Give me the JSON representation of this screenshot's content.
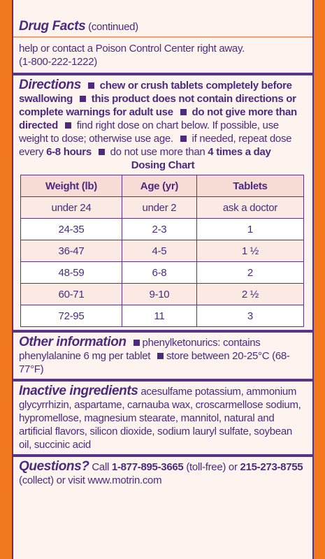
{
  "header": {
    "title": "Drug Facts",
    "subtitle": "(continued)"
  },
  "warning_continued": {
    "text": "help or contact a Poison Control Center right away.",
    "phone": "(1-800-222-1222)"
  },
  "directions": {
    "heading": "Directions",
    "items": [
      [
        {
          "text": "chew or crush tablets completely before swallowing",
          "bold": true
        }
      ],
      [
        {
          "text": "this product does not contain directions or complete warnings for adult use",
          "bold": true
        }
      ],
      [
        {
          "text": "do not give more than directed",
          "bold": true
        }
      ],
      [
        {
          "text": "find right dose on chart below. If possible, use weight to dose; otherwise use age.",
          "bold": false
        }
      ],
      [
        {
          "text": "if needed, repeat dose every",
          "bold": false
        },
        {
          "text": "6-8 hours",
          "bold": true
        }
      ],
      [
        {
          "text": "do not use more than",
          "bold": false
        },
        {
          "text": "4 times a day",
          "bold": true
        }
      ]
    ],
    "chart": {
      "title": "Dosing Chart",
      "columns": [
        "Weight (lb)",
        "Age (yr)",
        "Tablets"
      ],
      "rows": [
        [
          "under 24",
          "under 2",
          "ask a doctor"
        ],
        [
          "24-35",
          "2-3",
          "1"
        ],
        [
          "36-47",
          "4-5",
          "1 ½"
        ],
        [
          "48-59",
          "6-8",
          "2"
        ],
        [
          "60-71",
          "9-10",
          "2 ½"
        ],
        [
          "72-95",
          "11",
          "3"
        ]
      ]
    }
  },
  "other_information": {
    "heading": "Other information",
    "items": [
      "phenylketonurics: contains phenylalanine 6 mg per tablet",
      "store between 20-25°C (68-77°F)"
    ]
  },
  "inactive_ingredients": {
    "heading": "Inactive ingredients",
    "text": "acesulfame potassium, ammonium glycyrrhizin, aspartame, carnauba wax, croscarmellose sodium, hypromellose, magnesium stearate, mannitol, natural and artificial flavors, silicon dioxide, sodium lauryl sulfate, soybean oil, succinic acid"
  },
  "questions": {
    "heading": "Questions?",
    "segments": [
      {
        "text": "Call",
        "bold": false
      },
      {
        "text": "1-877-895-3665",
        "bold": true
      },
      {
        "text": "(toll-free) or",
        "bold": false
      },
      {
        "text": "215-273-8755",
        "bold": true
      },
      {
        "text": "(collect) or visit www.motrin.com",
        "bold": false
      }
    ]
  }
}
